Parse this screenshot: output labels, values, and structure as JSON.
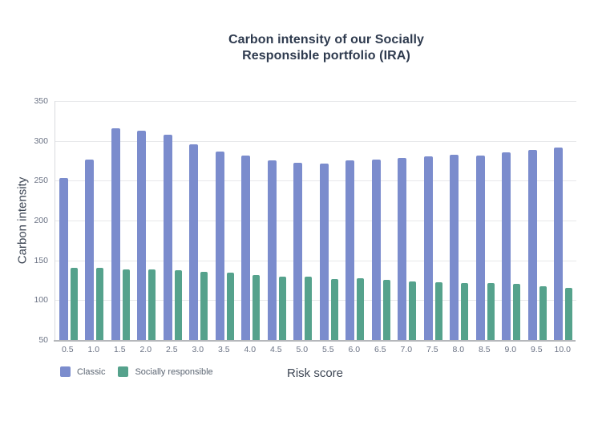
{
  "chart_data": {
    "type": "bar",
    "title": "Carbon intensity of our Socially Responsible portfolio (IRA)",
    "title_lines": [
      "Carbon intensity of our Socially",
      "Responsible portfolio (IRA)"
    ],
    "xlabel": "Risk score",
    "ylabel": "Carbon intensity",
    "ylim": [
      50,
      350
    ],
    "yticks": [
      50,
      100,
      150,
      200,
      250,
      300,
      350
    ],
    "grid": true,
    "legend_position": "bottom-left",
    "categories": [
      "0.5",
      "1.0",
      "1.5",
      "2.0",
      "2.5",
      "3.0",
      "3.5",
      "4.0",
      "4.5",
      "5.0",
      "5.5",
      "6.0",
      "6.5",
      "7.0",
      "7.5",
      "8.0",
      "8.5",
      "9.0",
      "9.5",
      "10.0"
    ],
    "series": [
      {
        "name": "Classic",
        "color": "#7b8ccd",
        "values": [
          253,
          277,
          316,
          313,
          308,
          296,
          287,
          282,
          276,
          272,
          271,
          276,
          277,
          279,
          281,
          283,
          282,
          286,
          289,
          292
        ]
      },
      {
        "name": "Socially responsible",
        "color": "#55a28c",
        "values": [
          141,
          141,
          139,
          139,
          138,
          136,
          135,
          132,
          130,
          130,
          127,
          128,
          126,
          124,
          123,
          121,
          121,
          120,
          117,
          115
        ]
      }
    ]
  },
  "colors": {
    "background": "#ffffff",
    "title": "#2e3a4e",
    "axis_title": "#3d4654",
    "tick_label": "#6a7284",
    "legend_label": "#5b6572",
    "gridline": "#e7e8ea",
    "axis_line_left": "#d9dade",
    "axis_line_bottom": "#b5b7bb"
  }
}
